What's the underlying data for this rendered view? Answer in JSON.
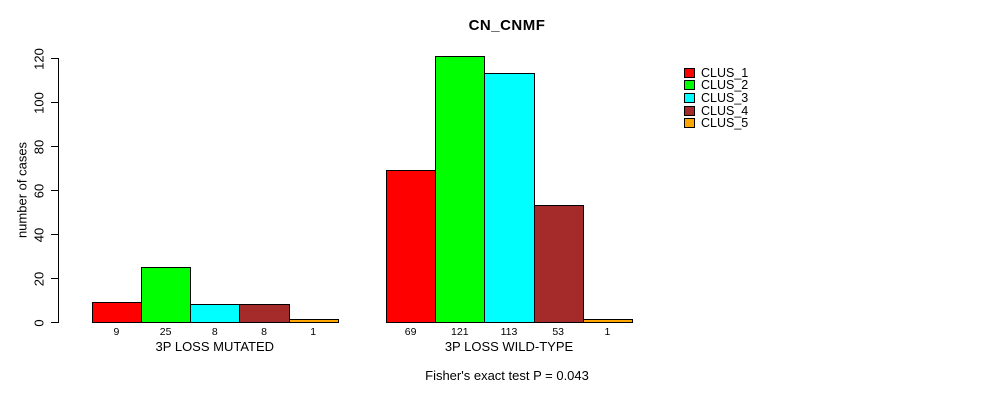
{
  "chart_data": {
    "type": "bar",
    "title": "CN_CNMF",
    "ylabel": "number of cases",
    "xlabel": "",
    "ylim": [
      0,
      120
    ],
    "yticks": [
      0,
      20,
      40,
      60,
      80,
      100,
      120
    ],
    "grid": false,
    "legend_position": "right-outside",
    "categories": [
      "3P LOSS MUTATED",
      "3P LOSS WILD-TYPE"
    ],
    "series": [
      {
        "name": "CLUS_1",
        "color": "#ff0000",
        "values": [
          9,
          69
        ]
      },
      {
        "name": "CLUS_2",
        "color": "#00ff00",
        "values": [
          25,
          121
        ]
      },
      {
        "name": "CLUS_3",
        "color": "#00ffff",
        "values": [
          8,
          113
        ]
      },
      {
        "name": "CLUS_4",
        "color": "#a52a2a",
        "values": [
          8,
          53
        ]
      },
      {
        "name": "CLUS_5",
        "color": "#ffa500",
        "values": [
          1,
          1
        ]
      }
    ],
    "bar_value_labels": true,
    "footer": "Fisher's exact test P = 0.043",
    "axis_color": "#000000",
    "background": "#ffffff"
  }
}
